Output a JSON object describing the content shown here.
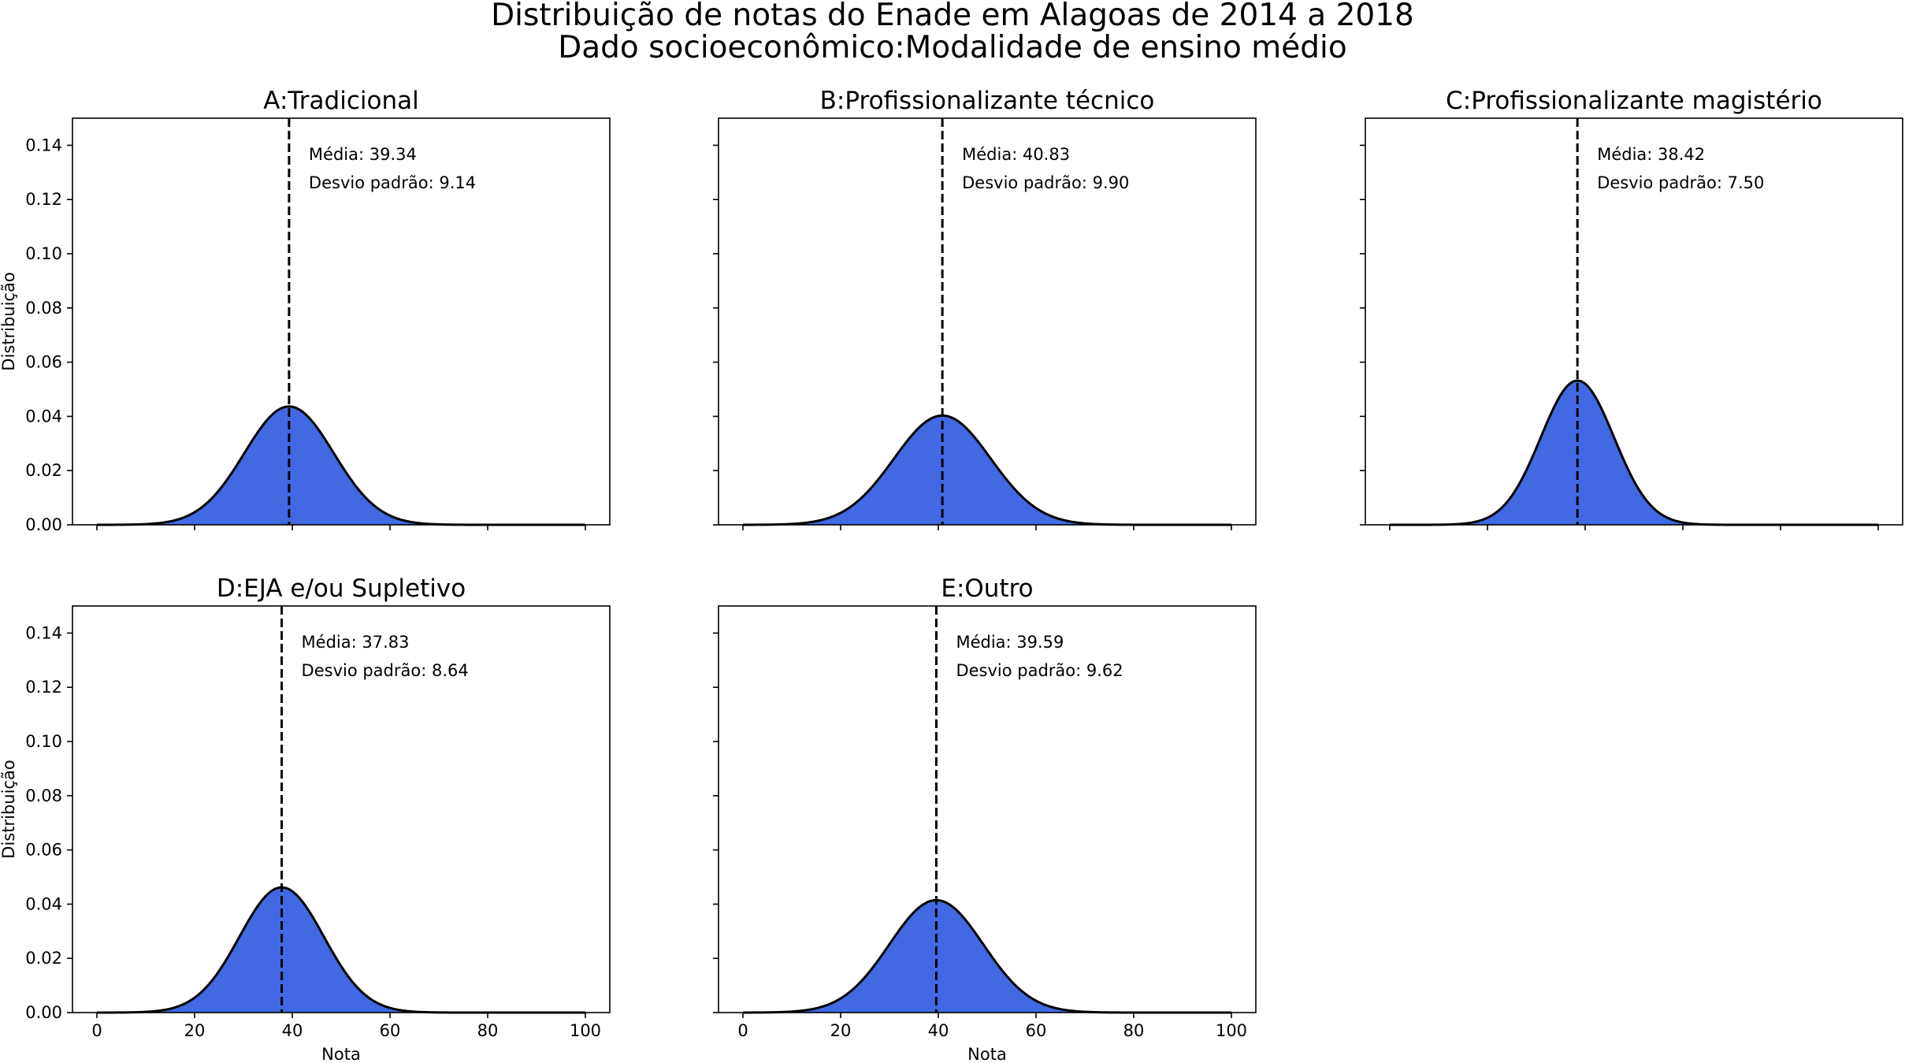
{
  "figure": {
    "title_line1": "Distribuição de notas do Enade em Alagoas de 2014 a 2018",
    "title_line2": "Dado socioeconômico:Modalidade de ensino médio"
  },
  "colors": {
    "fill": "#4169e1",
    "curve": "#000000",
    "mean_line": "#000000"
  },
  "chart_data": [
    {
      "type": "area",
      "title": "A:Tradicional",
      "mean": 39.34,
      "std": 9.14,
      "mean_text": "Média: 39.34",
      "std_text": "Desvio padrão: 9.14",
      "xlabel": "",
      "ylabel": "Distribuição",
      "xlim": [
        -5,
        105
      ],
      "ylim": [
        0,
        0.15
      ],
      "xticks": [
        0,
        20,
        40,
        60,
        80,
        100
      ],
      "yticks": [
        0,
        0.02,
        0.04,
        0.06,
        0.08,
        0.1,
        0.12,
        0.14
      ],
      "xtick_labels": [],
      "ytick_labels": [
        "0.00",
        "0.02",
        "0.04",
        "0.06",
        "0.08",
        "0.10",
        "0.12",
        "0.14"
      ]
    },
    {
      "type": "area",
      "title": "B:Profissionalizante técnico",
      "mean": 40.83,
      "std": 9.9,
      "mean_text": "Média: 40.83",
      "std_text": "Desvio padrão: 9.90",
      "xlabel": "",
      "ylabel": "",
      "xlim": [
        -5,
        105
      ],
      "ylim": [
        0,
        0.15
      ],
      "xticks": [
        0,
        20,
        40,
        60,
        80,
        100
      ],
      "yticks": [
        0,
        0.02,
        0.04,
        0.06,
        0.08,
        0.1,
        0.12,
        0.14
      ],
      "xtick_labels": [],
      "ytick_labels": []
    },
    {
      "type": "area",
      "title": "C:Profissionalizante magistério",
      "mean": 38.42,
      "std": 7.5,
      "mean_text": "Média: 38.42",
      "std_text": "Desvio padrão: 7.50",
      "xlabel": "",
      "ylabel": "",
      "xlim": [
        -5,
        105
      ],
      "ylim": [
        0,
        0.15
      ],
      "xticks": [
        0,
        20,
        40,
        60,
        80,
        100
      ],
      "yticks": [
        0,
        0.02,
        0.04,
        0.06,
        0.08,
        0.1,
        0.12,
        0.14
      ],
      "xtick_labels": [],
      "ytick_labels": []
    },
    {
      "type": "area",
      "title": "D:EJA e/ou Supletivo",
      "mean": 37.83,
      "std": 8.64,
      "mean_text": "Média: 37.83",
      "std_text": "Desvio padrão: 8.64",
      "xlabel": "Nota",
      "ylabel": "Distribuição",
      "xlim": [
        -5,
        105
      ],
      "ylim": [
        0,
        0.15
      ],
      "xticks": [
        0,
        20,
        40,
        60,
        80,
        100
      ],
      "yticks": [
        0,
        0.02,
        0.04,
        0.06,
        0.08,
        0.1,
        0.12,
        0.14
      ],
      "xtick_labels": [
        "0",
        "20",
        "40",
        "60",
        "80",
        "100"
      ],
      "ytick_labels": [
        "0.00",
        "0.02",
        "0.04",
        "0.06",
        "0.08",
        "0.10",
        "0.12",
        "0.14"
      ]
    },
    {
      "type": "area",
      "title": "E:Outro",
      "mean": 39.59,
      "std": 9.62,
      "mean_text": "Média: 39.59",
      "std_text": "Desvio padrão: 9.62",
      "xlabel": "Nota",
      "ylabel": "",
      "xlim": [
        -5,
        105
      ],
      "ylim": [
        0,
        0.15
      ],
      "xticks": [
        0,
        20,
        40,
        60,
        80,
        100
      ],
      "yticks": [
        0,
        0.02,
        0.04,
        0.06,
        0.08,
        0.1,
        0.12,
        0.14
      ],
      "xtick_labels": [
        "0",
        "20",
        "40",
        "60",
        "80",
        "100"
      ],
      "ytick_labels": []
    }
  ]
}
